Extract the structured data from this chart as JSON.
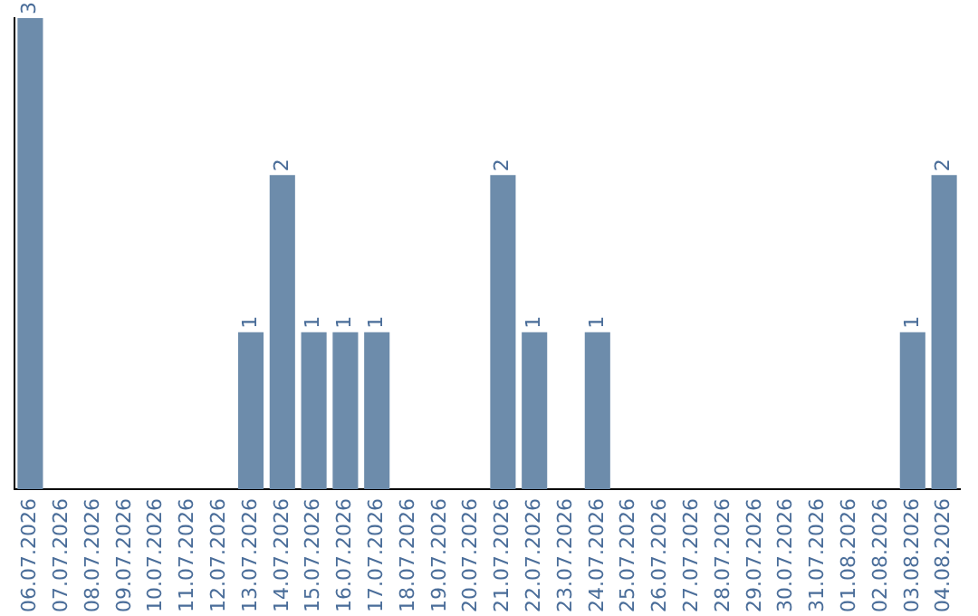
{
  "chart_data": {
    "type": "bar",
    "categories": [
      "06.07.2026",
      "07.07.2026",
      "08.07.2026",
      "09.07.2026",
      "10.07.2026",
      "11.07.2026",
      "12.07.2026",
      "13.07.2026",
      "14.07.2026",
      "15.07.2026",
      "16.07.2026",
      "17.07.2026",
      "18.07.2026",
      "19.07.2026",
      "20.07.2026",
      "21.07.2026",
      "22.07.2026",
      "23.07.2026",
      "24.07.2026",
      "25.07.2026",
      "26.07.2026",
      "27.07.2026",
      "28.07.2026",
      "29.07.2026",
      "30.07.2026",
      "31.07.2026",
      "01.08.2026",
      "02.08.2026",
      "03.08.2026",
      "04.08.2026"
    ],
    "values": [
      3,
      0,
      0,
      0,
      0,
      0,
      0,
      1,
      2,
      1,
      1,
      1,
      0,
      0,
      0,
      2,
      1,
      0,
      1,
      0,
      0,
      0,
      0,
      0,
      0,
      0,
      0,
      0,
      1,
      2
    ],
    "value_labels": [
      "3",
      null,
      null,
      null,
      null,
      null,
      null,
      "1",
      "2",
      "1",
      "1",
      "1",
      null,
      null,
      null,
      "2",
      "1",
      null,
      "1",
      null,
      null,
      null,
      null,
      null,
      null,
      null,
      null,
      null,
      "1",
      "2"
    ],
    "color": "#6d8cab",
    "tick_labels": "x",
    "grid": false,
    "legend": false
  }
}
